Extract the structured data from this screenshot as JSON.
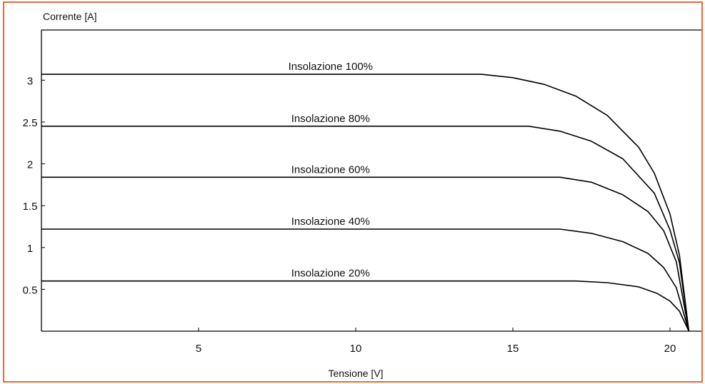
{
  "chart_data": {
    "type": "line",
    "xlabel": "Tensione [V]",
    "ylabel": "Corrente [A]",
    "xlim": [
      0,
      21
    ],
    "ylim": [
      0,
      3.6
    ],
    "x_ticks": [
      "5",
      "10",
      "15",
      "20"
    ],
    "y_ticks": [
      "0.5",
      "1",
      "1.5",
      "2",
      "2.5",
      "3"
    ],
    "grid": false,
    "colors": {
      "frame": "#e86a3a",
      "line": "#000000"
    },
    "series": [
      {
        "name": "Insolazione 100%",
        "x": [
          0,
          14.0,
          15.0,
          16.0,
          17.0,
          18.0,
          19.0,
          19.5,
          20.0,
          20.3,
          20.6
        ],
        "y": [
          3.07,
          3.07,
          3.03,
          2.95,
          2.81,
          2.58,
          2.2,
          1.89,
          1.4,
          0.91,
          0.0
        ]
      },
      {
        "name": "Insolazione 80%",
        "x": [
          0,
          15.5,
          16.5,
          17.5,
          18.5,
          19.5,
          20.0,
          20.3,
          20.6
        ],
        "y": [
          2.45,
          2.45,
          2.39,
          2.27,
          2.06,
          1.65,
          1.21,
          0.82,
          0.0
        ]
      },
      {
        "name": "Insolazione 60%",
        "x": [
          0,
          16.5,
          17.5,
          18.5,
          19.3,
          19.8,
          20.2,
          20.6
        ],
        "y": [
          1.84,
          1.84,
          1.78,
          1.63,
          1.43,
          1.2,
          0.83,
          0.0
        ]
      },
      {
        "name": "Insolazione 40%",
        "x": [
          0,
          16.5,
          17.5,
          18.5,
          19.3,
          19.8,
          20.2,
          20.6
        ],
        "y": [
          1.22,
          1.22,
          1.17,
          1.07,
          0.93,
          0.76,
          0.52,
          0.0
        ]
      },
      {
        "name": "Insolazione 20%",
        "x": [
          0,
          17.0,
          18.0,
          19.0,
          19.6,
          20.0,
          20.3,
          20.6
        ],
        "y": [
          0.6,
          0.6,
          0.58,
          0.53,
          0.45,
          0.36,
          0.24,
          0.0
        ]
      }
    ]
  }
}
